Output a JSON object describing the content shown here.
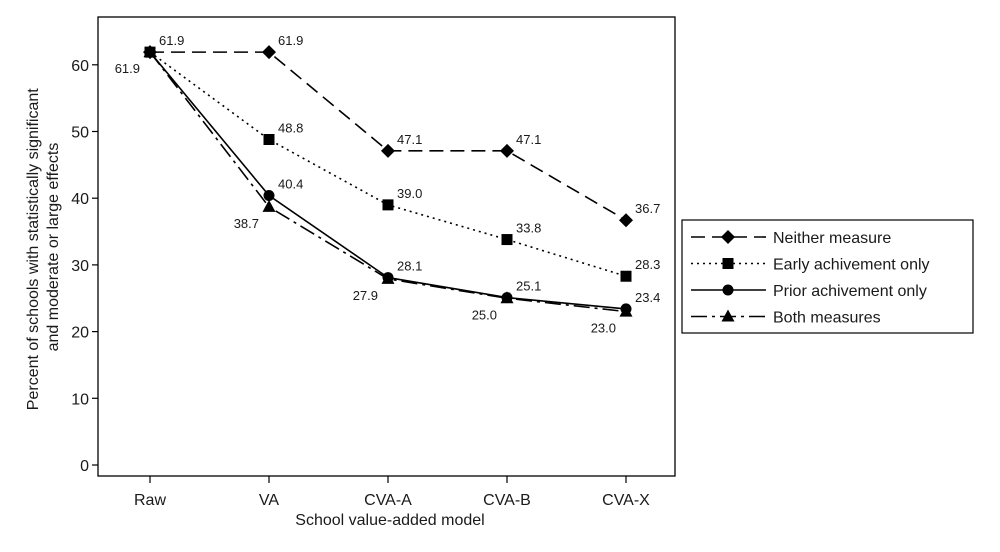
{
  "chart_data": {
    "type": "line",
    "xlabel": "School value-added model",
    "ylabel_lines": [
      "Percent of schools with statistically significant",
      "and moderate or large effects"
    ],
    "categories": [
      "Raw",
      "VA",
      "CVA-A",
      "CVA-B",
      "CVA-X"
    ],
    "ylim": [
      0,
      67
    ],
    "yticks": [
      0,
      10,
      20,
      30,
      40,
      50,
      60
    ],
    "grid": false,
    "legend_position": "right",
    "series": [
      {
        "name": "Neither measure",
        "marker": "diamond",
        "dash": "dashed",
        "values": [
          61.9,
          61.9,
          47.1,
          47.1,
          36.7
        ],
        "labels": [
          "61.9",
          "61.9",
          "47.1",
          "47.1",
          "36.7"
        ]
      },
      {
        "name": "Early achivement only",
        "marker": "square",
        "dash": "dotted",
        "values": [
          61.9,
          48.8,
          39.0,
          33.8,
          28.3
        ],
        "labels": [
          "",
          "48.8",
          "39.0",
          "33.8",
          "28.3"
        ]
      },
      {
        "name": "Prior achivement only",
        "marker": "circle",
        "dash": "solid",
        "values": [
          61.9,
          40.4,
          28.1,
          25.1,
          23.4
        ],
        "labels": [
          "",
          "40.4",
          "28.1",
          "25.1",
          "23.4"
        ]
      },
      {
        "name": "Both measures",
        "marker": "triangle",
        "dash": "dashdot",
        "values": [
          61.9,
          38.7,
          27.9,
          25.0,
          23.0
        ],
        "labels": [
          "61.9",
          "38.7",
          "27.9",
          "25.0",
          "23.0"
        ]
      }
    ]
  }
}
